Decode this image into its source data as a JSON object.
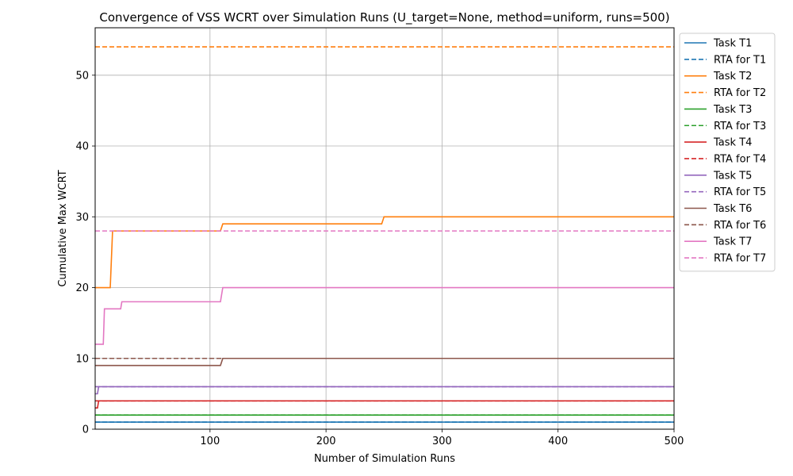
{
  "chart_data": {
    "type": "line",
    "title": "Convergence of VSS WCRT over Simulation Runs (U_target=None, method=uniform, runs=500)",
    "xlabel": "Number of Simulation Runs",
    "ylabel": "Cumulative Max WCRT",
    "xlim": [
      1,
      500
    ],
    "ylim": [
      0,
      56.7
    ],
    "x_ticks": [
      100,
      200,
      300,
      400,
      500
    ],
    "y_ticks": [
      0,
      10,
      20,
      30,
      40,
      50
    ],
    "grid": true,
    "legend_position": "outside-right",
    "series": [
      {
        "name": "Task T1",
        "color": "#1f77b4",
        "dash": "solid",
        "points": [
          [
            1,
            1
          ],
          [
            500,
            1
          ]
        ]
      },
      {
        "name": "RTA for T1",
        "color": "#1f77b4",
        "dash": "dashed",
        "points": [
          [
            1,
            1
          ],
          [
            500,
            1
          ]
        ]
      },
      {
        "name": "Task T2",
        "color": "#ff7f0e",
        "dash": "solid",
        "points": [
          [
            1,
            20
          ],
          [
            14,
            20
          ],
          [
            16,
            28
          ],
          [
            109,
            28
          ],
          [
            111,
            29
          ],
          [
            248,
            29
          ],
          [
            250,
            30
          ],
          [
            500,
            30
          ]
        ]
      },
      {
        "name": "RTA for T2",
        "color": "#ff7f0e",
        "dash": "dashed",
        "points": [
          [
            1,
            54
          ],
          [
            500,
            54
          ]
        ]
      },
      {
        "name": "Task T3",
        "color": "#2ca02c",
        "dash": "solid",
        "points": [
          [
            1,
            2
          ],
          [
            500,
            2
          ]
        ]
      },
      {
        "name": "RTA for T3",
        "color": "#2ca02c",
        "dash": "dashed",
        "points": [
          [
            1,
            2
          ],
          [
            500,
            2
          ]
        ]
      },
      {
        "name": "Task T4",
        "color": "#d62728",
        "dash": "solid",
        "points": [
          [
            1,
            3
          ],
          [
            3,
            3
          ],
          [
            4,
            4
          ],
          [
            500,
            4
          ]
        ]
      },
      {
        "name": "RTA for T4",
        "color": "#d62728",
        "dash": "dashed",
        "points": [
          [
            1,
            4
          ],
          [
            500,
            4
          ]
        ]
      },
      {
        "name": "Task T5",
        "color": "#9467bd",
        "dash": "solid",
        "points": [
          [
            1,
            5
          ],
          [
            3,
            5
          ],
          [
            4,
            6
          ],
          [
            500,
            6
          ]
        ]
      },
      {
        "name": "RTA for T5",
        "color": "#9467bd",
        "dash": "dashed",
        "points": [
          [
            1,
            6
          ],
          [
            500,
            6
          ]
        ]
      },
      {
        "name": "Task T6",
        "color": "#8c564b",
        "dash": "solid",
        "points": [
          [
            1,
            9
          ],
          [
            109,
            9
          ],
          [
            111,
            10
          ],
          [
            500,
            10
          ]
        ]
      },
      {
        "name": "RTA for T6",
        "color": "#8c564b",
        "dash": "dashed",
        "points": [
          [
            1,
            10
          ],
          [
            500,
            10
          ]
        ]
      },
      {
        "name": "Task T7",
        "color": "#e377c2",
        "dash": "solid",
        "points": [
          [
            1,
            12
          ],
          [
            8,
            12
          ],
          [
            9,
            17
          ],
          [
            23,
            17
          ],
          [
            24,
            18
          ],
          [
            109,
            18
          ],
          [
            111,
            20
          ],
          [
            500,
            20
          ]
        ]
      },
      {
        "name": "RTA for T7",
        "color": "#e377c2",
        "dash": "dashed",
        "points": [
          [
            1,
            28
          ],
          [
            500,
            28
          ]
        ]
      }
    ]
  }
}
